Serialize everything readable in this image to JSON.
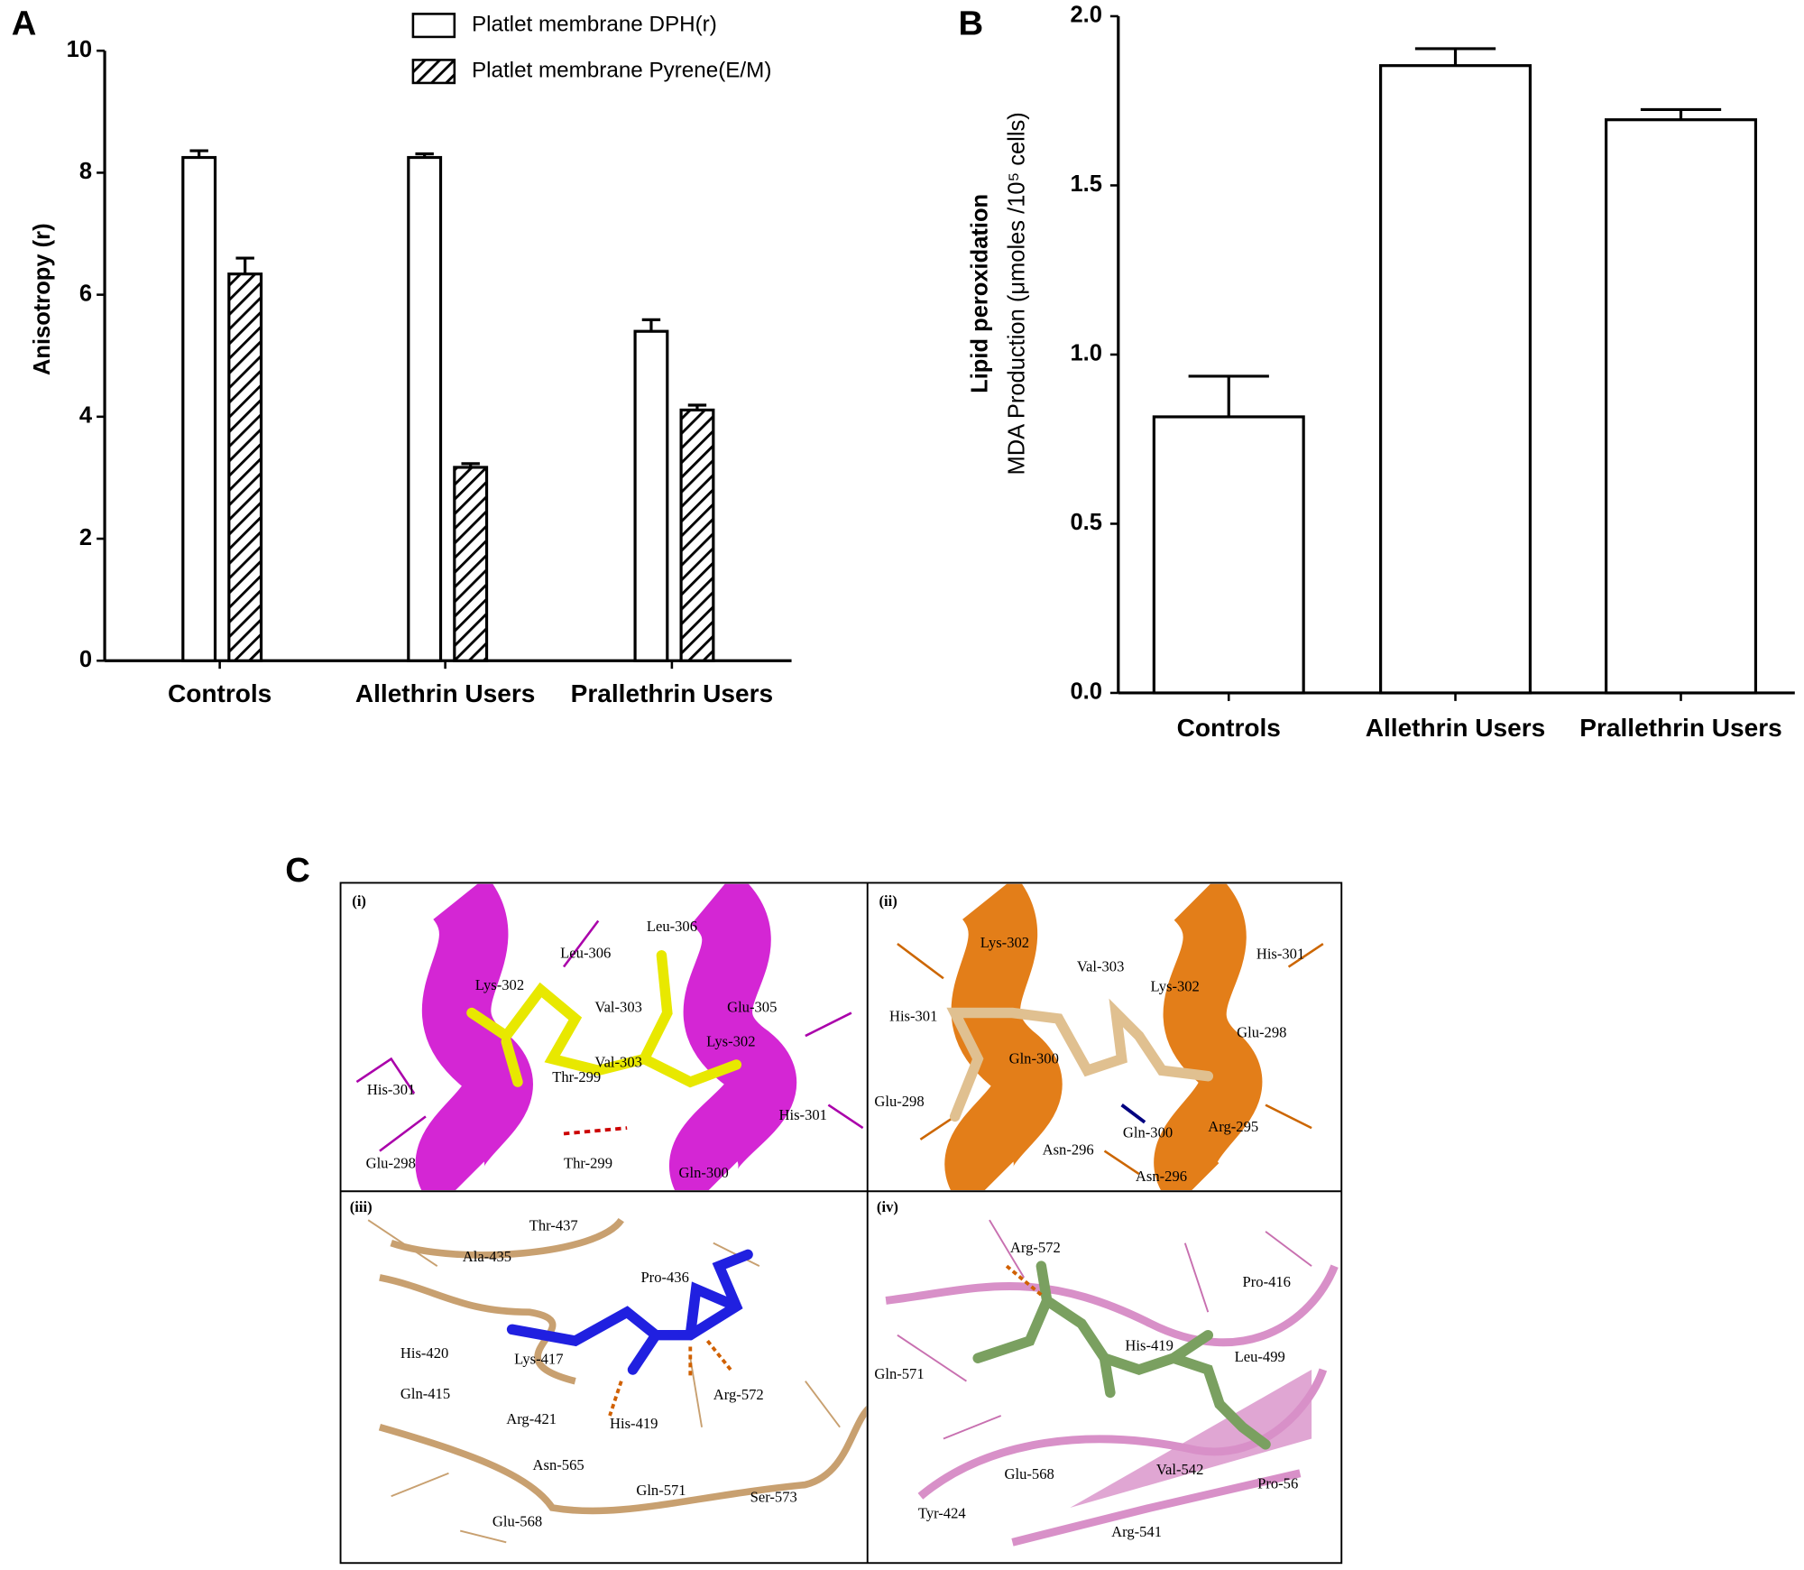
{
  "chart_data": [
    {
      "type": "bar",
      "panel_label": "A",
      "ylabel": [
        "Anisotropy (r)"
      ],
      "categories": [
        "Controls",
        "Allethrin Users",
        "Prallethrin Users"
      ],
      "series": [
        {
          "name": "Platlet membrane DPH(r)",
          "color": "#ffffff",
          "hatch": false,
          "values": [
            8.25,
            8.25,
            5.4
          ],
          "errors": [
            0.11,
            0.06,
            0.19
          ]
        },
        {
          "name": "Platlet membrane Pyrene(E/M)",
          "color": "#ffffff",
          "hatch": true,
          "values": [
            6.34,
            3.17,
            4.11
          ],
          "errors": [
            0.26,
            0.06,
            0.08
          ]
        }
      ],
      "ylim": [
        0,
        10
      ],
      "yticks": [
        0,
        2,
        4,
        6,
        8,
        10
      ]
    },
    {
      "type": "bar",
      "panel_label": "B",
      "ylabel": [
        "Lipid peroxidation",
        "MDA Production (μmoles /10⁵ cells)"
      ],
      "categories": [
        "Controls",
        "Allethrin Users",
        "Prallethrin Users"
      ],
      "values": [
        0.816,
        1.854,
        1.694
      ],
      "errors": [
        0.12,
        0.05,
        0.03
      ],
      "color": "#ffffff",
      "ylim": [
        0,
        2
      ],
      "yticks": [
        {
          "value": 0,
          "label": "0.0"
        },
        {
          "value": 0.5,
          "label": "0.5"
        },
        {
          "value": 1,
          "label": "1.0"
        },
        1.5,
        {
          "value": 2,
          "label": "2.0"
        }
      ]
    }
  ],
  "panel_c": {
    "label": "C",
    "panels": [
      {
        "tag": "(i)",
        "residues": [
          "Leu-306",
          "Leu-306",
          "Lys-302",
          "Val-303",
          "Glu-305",
          "Val-303",
          "Lys-302",
          "His-301",
          "Thr-299",
          "His-301",
          "Glu-298",
          "Thr-299",
          "Gln-300"
        ]
      },
      {
        "tag": "(ii)",
        "residues": [
          "Lys-302",
          "Val-303",
          "His-301",
          "Lys-302",
          "His-301",
          "Glu-298",
          "Gln-300",
          "Glu-298",
          "Gln-300",
          "Arg-295",
          "Asn-296",
          "Asn-296"
        ]
      },
      {
        "tag": "(iii)",
        "residues": [
          "Thr-437",
          "Ala-435",
          "Pro-436",
          "His-420",
          "Lys-417",
          "Gln-415",
          "Arg-572",
          "Arg-421",
          "His-419",
          "Asn-565",
          "Gln-571",
          "Ser-573",
          "Glu-568"
        ]
      },
      {
        "tag": "(iv)",
        "residues": [
          "Arg-572",
          "Pro-416",
          "His-419",
          "Gln-571",
          "Leu-499",
          "Glu-568",
          "Val-542",
          "Pro-56",
          "Tyr-424",
          "Arg-541"
        ]
      }
    ]
  }
}
